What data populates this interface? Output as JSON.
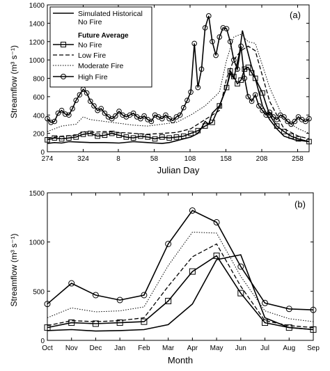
{
  "chart_data": [
    {
      "type": "line",
      "panel_label": "(a)",
      "xlabel": "Julian Day",
      "ylabel": "Streamflow (m³ s⁻¹)",
      "ylim": [
        0,
        1600
      ],
      "yticks": [
        0,
        200,
        400,
        600,
        800,
        1000,
        1200,
        1400,
        1600
      ],
      "xlim": [
        0,
        365
      ],
      "xtick_positions": [
        0,
        50,
        99,
        149,
        199,
        249,
        299,
        349
      ],
      "xtick_labels": [
        "274",
        "324",
        "8",
        "58",
        "108",
        "158",
        "208",
        "258"
      ],
      "legend": {
        "placement": "top-left",
        "items": [
          {
            "label": "Simulated Historical",
            "style": "solid"
          },
          {
            "label": "No Fire",
            "style": "none"
          },
          {
            "label": "Future Average",
            "style": "heading"
          },
          {
            "label": "No Fire",
            "style": "solid-square"
          },
          {
            "label": "Low Fire",
            "style": "dashed"
          },
          {
            "label": "Moderate Fire",
            "style": "dotted"
          },
          {
            "label": "High Fire",
            "style": "solid-circle"
          }
        ]
      },
      "series": [
        {
          "style": "solid",
          "x": [
            0,
            10,
            20,
            30,
            45,
            60,
            80,
            100,
            120,
            140,
            150,
            160,
            170,
            180,
            190,
            200,
            205,
            210,
            215,
            220,
            225,
            230,
            240,
            250,
            255,
            260,
            268,
            272,
            278,
            284,
            290,
            300,
            310,
            320,
            330,
            345,
            365
          ],
          "y": [
            90,
            100,
            95,
            110,
            105,
            100,
            100,
            95,
            110,
            100,
            95,
            90,
            100,
            120,
            140,
            160,
            180,
            200,
            260,
            330,
            300,
            420,
            500,
            700,
            850,
            800,
            1080,
            1320,
            1130,
            950,
            800,
            500,
            350,
            250,
            170,
            130,
            110
          ]
        },
        {
          "style": "solid-square",
          "x": [
            0,
            10,
            20,
            30,
            40,
            50,
            60,
            70,
            80,
            90,
            100,
            110,
            120,
            130,
            140,
            150,
            160,
            170,
            180,
            190,
            200,
            210,
            220,
            230,
            240,
            250,
            255,
            260,
            265,
            270,
            275,
            280,
            285,
            290,
            300,
            310,
            320,
            330,
            340,
            350,
            365
          ],
          "y": [
            130,
            150,
            140,
            150,
            160,
            190,
            200,
            170,
            180,
            200,
            180,
            160,
            150,
            170,
            160,
            140,
            160,
            150,
            160,
            170,
            200,
            230,
            280,
            320,
            500,
            700,
            880,
            820,
            740,
            780,
            900,
            920,
            860,
            800,
            640,
            400,
            280,
            220,
            170,
            140,
            110
          ]
        },
        {
          "style": "dashed",
          "x": [
            0,
            20,
            40,
            50,
            60,
            80,
            100,
            120,
            140,
            160,
            180,
            200,
            220,
            240,
            250,
            260,
            270,
            280,
            290,
            310,
            330,
            350,
            365
          ],
          "y": [
            150,
            170,
            180,
            220,
            210,
            220,
            210,
            200,
            190,
            200,
            210,
            250,
            350,
            450,
            800,
            1000,
            1100,
            1150,
            1100,
            550,
            250,
            170,
            140
          ]
        },
        {
          "style": "dotted",
          "x": [
            0,
            20,
            40,
            50,
            60,
            80,
            100,
            120,
            140,
            160,
            180,
            200,
            220,
            240,
            250,
            260,
            270,
            280,
            290,
            310,
            330,
            350,
            365
          ],
          "y": [
            220,
            280,
            300,
            380,
            350,
            330,
            310,
            290,
            280,
            300,
            320,
            400,
            500,
            650,
            1000,
            1250,
            1280,
            1200,
            1180,
            700,
            350,
            250,
            200
          ]
        },
        {
          "style": "solid-circle",
          "x": [
            0,
            5,
            10,
            15,
            20,
            25,
            30,
            35,
            40,
            45,
            50,
            55,
            60,
            65,
            70,
            75,
            80,
            85,
            90,
            95,
            100,
            105,
            110,
            115,
            120,
            125,
            130,
            135,
            140,
            145,
            150,
            155,
            160,
            165,
            170,
            175,
            180,
            185,
            190,
            195,
            200,
            205,
            210,
            215,
            220,
            225,
            230,
            235,
            240,
            245,
            250,
            255,
            260,
            265,
            270,
            275,
            280,
            285,
            290,
            295,
            300,
            305,
            310,
            315,
            320,
            325,
            330,
            335,
            340,
            345,
            350,
            355,
            360,
            365
          ],
          "y": [
            360,
            320,
            330,
            420,
            450,
            410,
            400,
            470,
            560,
            620,
            680,
            640,
            550,
            500,
            450,
            470,
            420,
            380,
            360,
            390,
            440,
            400,
            380,
            400,
            420,
            380,
            360,
            390,
            350,
            330,
            400,
            380,
            360,
            400,
            360,
            340,
            380,
            400,
            480,
            560,
            650,
            1180,
            700,
            900,
            1350,
            1480,
            1200,
            1050,
            1250,
            1350,
            1340,
            1200,
            1000,
            900,
            1150,
            800,
            600,
            550,
            620,
            500,
            450,
            400,
            430,
            380,
            350,
            400,
            380,
            330,
            300,
            330,
            380,
            350,
            330,
            360
          ]
        }
      ]
    },
    {
      "type": "line",
      "panel_label": "(b)",
      "xlabel": "Month",
      "ylabel": "Streamflow (m³ s⁻¹)",
      "ylim": [
        0,
        1500
      ],
      "yticks": [
        0,
        500,
        1000,
        1500
      ],
      "categories": [
        "Oct",
        "Nov",
        "Dec",
        "Jan",
        "Feb",
        "Mar",
        "Apr",
        "May",
        "Jun",
        "Jul",
        "Aug",
        "Sep"
      ],
      "series": [
        {
          "style": "solid",
          "values": [
            100,
            110,
            95,
            100,
            110,
            160,
            370,
            820,
            870,
            230,
            130,
            110
          ]
        },
        {
          "style": "solid-square",
          "values": [
            130,
            180,
            170,
            180,
            190,
            400,
            700,
            860,
            480,
            180,
            130,
            110
          ]
        },
        {
          "style": "dashed",
          "values": [
            150,
            200,
            190,
            200,
            230,
            550,
            850,
            980,
            550,
            200,
            150,
            130
          ]
        },
        {
          "style": "dotted",
          "values": [
            230,
            330,
            290,
            300,
            340,
            760,
            1100,
            1090,
            650,
            300,
            220,
            190
          ]
        },
        {
          "style": "solid-circle",
          "values": [
            370,
            580,
            460,
            410,
            460,
            980,
            1320,
            1200,
            750,
            380,
            320,
            310
          ]
        }
      ]
    }
  ]
}
